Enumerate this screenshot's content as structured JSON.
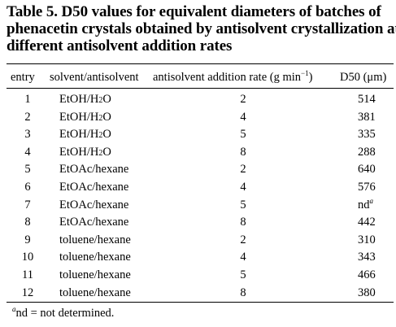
{
  "caption": {
    "line1": "Table 5. D50 values for equivalent diameters of batches of",
    "line2": "phenacetin crystals obtained by antisolvent crystallization at",
    "line3": "different antisolvent addition rates"
  },
  "headers": {
    "entry": "entry",
    "solvent": "solvent/antisolvent",
    "rate_pre": "antisolvent addition rate (g min",
    "rate_sup": "−1",
    "rate_post": ")",
    "d50": "D50 (μm)"
  },
  "rows": [
    {
      "entry": "1",
      "solvent": "EtOH/H",
      "sub": "2",
      "post": "O",
      "rate": "2",
      "d50": "514",
      "mark": ""
    },
    {
      "entry": "2",
      "solvent": "EtOH/H",
      "sub": "2",
      "post": "O",
      "rate": "4",
      "d50": "381",
      "mark": ""
    },
    {
      "entry": "3",
      "solvent": "EtOH/H",
      "sub": "2",
      "post": "O",
      "rate": "5",
      "d50": "335",
      "mark": ""
    },
    {
      "entry": "4",
      "solvent": "EtOH/H",
      "sub": "2",
      "post": "O",
      "rate": "8",
      "d50": "288",
      "mark": ""
    },
    {
      "entry": "5",
      "solvent": "EtOAc/hexane",
      "sub": "",
      "post": "",
      "rate": "2",
      "d50": "640",
      "mark": ""
    },
    {
      "entry": "6",
      "solvent": "EtOAc/hexane",
      "sub": "",
      "post": "",
      "rate": "4",
      "d50": "576",
      "mark": ""
    },
    {
      "entry": "7",
      "solvent": "EtOAc/hexane",
      "sub": "",
      "post": "",
      "rate": "5",
      "d50": "nd",
      "mark": "a"
    },
    {
      "entry": "8",
      "solvent": "EtOAc/hexane",
      "sub": "",
      "post": "",
      "rate": "8",
      "d50": "442",
      "mark": ""
    },
    {
      "entry": "9",
      "solvent": "toluene/hexane",
      "sub": "",
      "post": "",
      "rate": "2",
      "d50": "310",
      "mark": ""
    },
    {
      "entry": "10",
      "solvent": "toluene/hexane",
      "sub": "",
      "post": "",
      "rate": "4",
      "d50": "343",
      "mark": ""
    },
    {
      "entry": "11",
      "solvent": "toluene/hexane",
      "sub": "",
      "post": "",
      "rate": "5",
      "d50": "466",
      "mark": ""
    },
    {
      "entry": "12",
      "solvent": "toluene/hexane",
      "sub": "",
      "post": "",
      "rate": "8",
      "d50": "380",
      "mark": ""
    }
  ],
  "footnote": {
    "mark": "a",
    "text": "nd = not determined."
  }
}
